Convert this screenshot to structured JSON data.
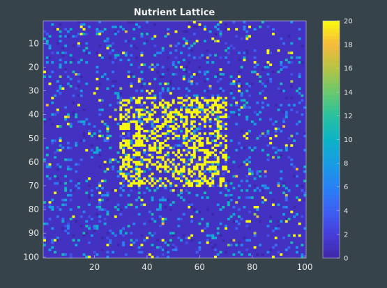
{
  "chart_data": {
    "type": "heatmap",
    "title": "Nutrient Lattice",
    "xlabel": "",
    "ylabel": "",
    "grid_size": [
      100,
      100
    ],
    "xlim": [
      0.5,
      100.5
    ],
    "ylim": [
      0.5,
      100.5
    ],
    "y_reversed": true,
    "x_ticks": [
      20,
      40,
      60,
      80,
      100
    ],
    "y_ticks": [
      10,
      20,
      30,
      40,
      50,
      60,
      70,
      80,
      90,
      100
    ],
    "colorbar": {
      "min": 0,
      "max": 20,
      "ticks": [
        0,
        2,
        4,
        6,
        8,
        10,
        12,
        14,
        16,
        18,
        20
      ],
      "colormap": "parula",
      "placement": "right"
    },
    "background_value": 1,
    "hot_region": {
      "x_range": [
        30,
        70
      ],
      "y_range": [
        33,
        70
      ],
      "peak_value": 20
    },
    "description_values": {
      "background_level": 1,
      "sparse_high_level": [
        6,
        10,
        20
      ],
      "cluster_level": 20
    }
  },
  "colors": {
    "figure_background": "#36434b",
    "axes_background": "#3e2f99",
    "tick_color": "#e6e6e6"
  }
}
